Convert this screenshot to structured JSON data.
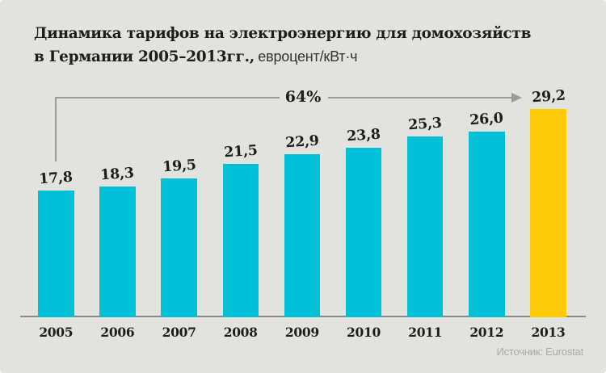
{
  "title": {
    "line1": "Динамика тарифов на электроэнергию для домохозяйств",
    "line2_bold": "в Германии 2005–2013гг.,",
    "line2_regular": "евроцент/кВт·ч"
  },
  "annotation": {
    "growth_label": "64%"
  },
  "source": "Источник: Eurostat",
  "colors": {
    "background": "#E3E3DE",
    "bar": "#00C0D8",
    "bar_highlight": "#FDCB0A",
    "annotation_line": "#9B9B98",
    "baseline": "#8A8A87",
    "text": "#1D1D1B",
    "source_text": "#A9A9A6"
  },
  "chart_data": {
    "type": "bar",
    "title": "Динамика тарифов на электроэнергию для домохозяйств в Германии 2005–2013гг.",
    "ylabel": "евроцент/кВт·ч",
    "categories": [
      "2005",
      "2006",
      "2007",
      "2008",
      "2009",
      "2010",
      "2011",
      "2012",
      "2013"
    ],
    "values": [
      17.8,
      18.3,
      19.5,
      21.5,
      22.9,
      23.8,
      25.3,
      26.0,
      29.2
    ],
    "value_labels": [
      "17,8",
      "18,3",
      "19,5",
      "21,5",
      "22,9",
      "23,8",
      "25,3",
      "26,0",
      "29,2"
    ],
    "highlight_index": 8,
    "annotation_growth": "64%",
    "ylim": [
      0,
      33
    ],
    "grid": false,
    "legend": false
  }
}
